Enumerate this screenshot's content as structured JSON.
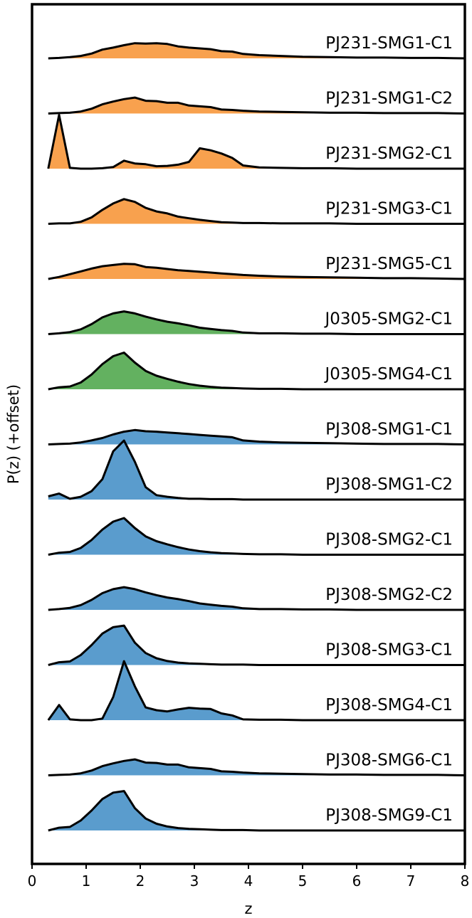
{
  "chart_data": {
    "type": "area",
    "xlabel": "z",
    "ylabel": "P(z) (+offset)",
    "xlim": [
      0,
      8
    ],
    "xticks": [
      "0",
      "1",
      "2",
      "3",
      "4",
      "5",
      "6",
      "7",
      "8"
    ],
    "grid": false,
    "legend": "none",
    "colors": {
      "PJ231": "#f8a14e",
      "J0305": "#63b160",
      "PJ308": "#5a9ccd"
    },
    "x": [
      0.3,
      0.5,
      0.7,
      0.9,
      1.1,
      1.3,
      1.5,
      1.7,
      1.9,
      2.1,
      2.3,
      2.5,
      2.7,
      2.9,
      3.1,
      3.3,
      3.5,
      3.7,
      3.9,
      4.2,
      4.6,
      5.0,
      5.5,
      6.0,
      6.5,
      7.0,
      7.5,
      8.0
    ],
    "series": [
      {
        "name": "PJ231-SMG1-C1",
        "group": "PJ231",
        "values": [
          0.0,
          0.01,
          0.03,
          0.06,
          0.12,
          0.22,
          0.27,
          0.33,
          0.38,
          0.37,
          0.38,
          0.36,
          0.3,
          0.27,
          0.25,
          0.23,
          0.18,
          0.17,
          0.11,
          0.08,
          0.06,
          0.04,
          0.03,
          0.02,
          0.02,
          0.01,
          0.01,
          0.0
        ]
      },
      {
        "name": "PJ231-SMG1-C2",
        "group": "PJ231",
        "values": [
          0.0,
          0.01,
          0.02,
          0.05,
          0.12,
          0.23,
          0.3,
          0.36,
          0.4,
          0.32,
          0.31,
          0.27,
          0.27,
          0.2,
          0.18,
          0.16,
          0.1,
          0.09,
          0.07,
          0.05,
          0.04,
          0.03,
          0.02,
          0.02,
          0.01,
          0.01,
          0.01,
          0.0
        ]
      },
      {
        "name": "PJ231-SMG2-C1",
        "group": "PJ231",
        "values": [
          0.0,
          1.35,
          0.02,
          0.0,
          0.0,
          0.01,
          0.04,
          0.2,
          0.13,
          0.11,
          0.06,
          0.07,
          0.1,
          0.17,
          0.51,
          0.46,
          0.38,
          0.27,
          0.08,
          0.03,
          0.02,
          0.01,
          0.01,
          0.0,
          0.0,
          0.0,
          0.0,
          0.0
        ]
      },
      {
        "name": "PJ231-SMG3-C1",
        "group": "PJ231",
        "values": [
          0.0,
          0.01,
          0.01,
          0.05,
          0.16,
          0.35,
          0.51,
          0.62,
          0.55,
          0.4,
          0.31,
          0.26,
          0.18,
          0.14,
          0.1,
          0.07,
          0.04,
          0.03,
          0.02,
          0.02,
          0.01,
          0.01,
          0.01,
          0.0,
          0.0,
          0.0,
          0.0,
          0.0
        ]
      },
      {
        "name": "PJ231-SMG5-C1",
        "group": "PJ231",
        "values": [
          0.0,
          0.05,
          0.12,
          0.19,
          0.26,
          0.32,
          0.35,
          0.38,
          0.37,
          0.3,
          0.28,
          0.25,
          0.22,
          0.2,
          0.18,
          0.16,
          0.14,
          0.12,
          0.1,
          0.08,
          0.06,
          0.05,
          0.04,
          0.03,
          0.02,
          0.02,
          0.01,
          0.0
        ]
      },
      {
        "name": "J0305-SMG2-C1",
        "group": "J0305",
        "values": [
          0.0,
          0.02,
          0.05,
          0.12,
          0.25,
          0.42,
          0.52,
          0.57,
          0.52,
          0.44,
          0.37,
          0.31,
          0.27,
          0.22,
          0.16,
          0.13,
          0.1,
          0.08,
          0.04,
          0.02,
          0.02,
          0.01,
          0.01,
          0.0,
          0.0,
          0.0,
          0.0,
          0.0
        ]
      },
      {
        "name": "J0305-SMG4-C1",
        "group": "J0305",
        "values": [
          0.0,
          0.05,
          0.07,
          0.17,
          0.37,
          0.63,
          0.83,
          0.92,
          0.67,
          0.46,
          0.34,
          0.26,
          0.19,
          0.13,
          0.09,
          0.06,
          0.04,
          0.03,
          0.02,
          0.01,
          0.01,
          0.0,
          0.0,
          0.0,
          0.0,
          0.0,
          0.0,
          0.0
        ]
      },
      {
        "name": "PJ308-SMG1-C1",
        "group": "PJ308",
        "values": [
          0.0,
          0.01,
          0.02,
          0.05,
          0.1,
          0.16,
          0.25,
          0.32,
          0.36,
          0.33,
          0.32,
          0.3,
          0.28,
          0.26,
          0.24,
          0.22,
          0.2,
          0.18,
          0.1,
          0.07,
          0.05,
          0.04,
          0.03,
          0.02,
          0.01,
          0.01,
          0.01,
          0.0
        ]
      },
      {
        "name": "PJ308-SMG1-C2",
        "group": "PJ308",
        "values": [
          0.08,
          0.15,
          0.02,
          0.07,
          0.21,
          0.51,
          1.21,
          1.48,
          0.95,
          0.31,
          0.11,
          0.07,
          0.04,
          0.02,
          0.02,
          0.01,
          0.01,
          0.01,
          0.0,
          0.0,
          0.0,
          0.0,
          0.0,
          0.0,
          0.0,
          0.0,
          0.0,
          0.0
        ]
      },
      {
        "name": "PJ308-SMG2-C1",
        "group": "PJ308",
        "values": [
          0.0,
          0.05,
          0.07,
          0.17,
          0.37,
          0.63,
          0.83,
          0.92,
          0.67,
          0.46,
          0.34,
          0.26,
          0.19,
          0.13,
          0.09,
          0.06,
          0.04,
          0.03,
          0.02,
          0.01,
          0.01,
          0.0,
          0.0,
          0.0,
          0.0,
          0.0,
          0.0,
          0.0
        ]
      },
      {
        "name": "PJ308-SMG2-C2",
        "group": "PJ308",
        "values": [
          0.0,
          0.02,
          0.05,
          0.12,
          0.25,
          0.42,
          0.52,
          0.57,
          0.52,
          0.44,
          0.37,
          0.31,
          0.27,
          0.22,
          0.16,
          0.13,
          0.1,
          0.08,
          0.04,
          0.02,
          0.02,
          0.01,
          0.01,
          0.0,
          0.0,
          0.0,
          0.0,
          0.0
        ]
      },
      {
        "name": "PJ308-SMG3-C1",
        "group": "PJ308",
        "values": [
          0.0,
          0.07,
          0.09,
          0.25,
          0.5,
          0.79,
          0.95,
          0.99,
          0.56,
          0.3,
          0.17,
          0.1,
          0.06,
          0.04,
          0.03,
          0.02,
          0.01,
          0.01,
          0.01,
          0.0,
          0.0,
          0.0,
          0.0,
          0.0,
          0.0,
          0.0,
          0.0,
          0.0
        ]
      },
      {
        "name": "PJ308-SMG4-C1",
        "group": "PJ308",
        "values": [
          0.0,
          0.38,
          0.02,
          0.0,
          0.0,
          0.04,
          0.58,
          1.48,
          0.85,
          0.32,
          0.25,
          0.22,
          0.27,
          0.31,
          0.29,
          0.28,
          0.17,
          0.12,
          0.02,
          0.01,
          0.01,
          0.0,
          0.0,
          0.0,
          0.0,
          0.0,
          0.0,
          0.0
        ]
      },
      {
        "name": "PJ308-SMG6-C1",
        "group": "PJ308",
        "values": [
          0.0,
          0.01,
          0.02,
          0.05,
          0.12,
          0.23,
          0.3,
          0.36,
          0.4,
          0.32,
          0.31,
          0.27,
          0.27,
          0.2,
          0.18,
          0.16,
          0.1,
          0.09,
          0.07,
          0.05,
          0.04,
          0.03,
          0.02,
          0.02,
          0.01,
          0.01,
          0.01,
          0.0
        ]
      },
      {
        "name": "PJ308-SMG9-C1",
        "group": "PJ308",
        "values": [
          0.0,
          0.07,
          0.09,
          0.25,
          0.5,
          0.79,
          0.95,
          0.99,
          0.56,
          0.3,
          0.17,
          0.1,
          0.06,
          0.04,
          0.03,
          0.02,
          0.01,
          0.01,
          0.01,
          0.0,
          0.0,
          0.0,
          0.0,
          0.0,
          0.0,
          0.0,
          0.0,
          0.0
        ]
      }
    ]
  }
}
